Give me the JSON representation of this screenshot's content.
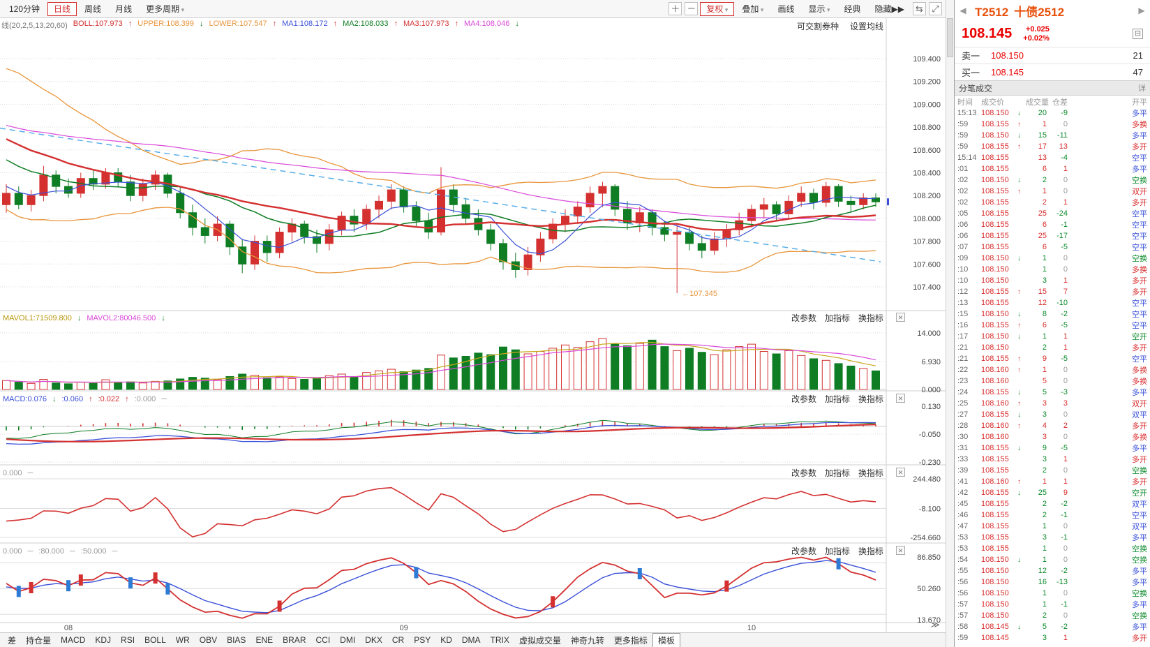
{
  "toolbar": {
    "periods": [
      {
        "label": "120分钟"
      },
      {
        "label": "日线",
        "active": true
      },
      {
        "label": "周线"
      },
      {
        "label": "月线"
      },
      {
        "label": "更多周期",
        "dropdown": true
      }
    ],
    "zoom_in_label": "＋",
    "zoom_out_label": "－",
    "right_buttons": [
      {
        "label": "复权",
        "dropdown": true,
        "accent": true
      },
      {
        "label": "叠加",
        "dropdown": true
      },
      {
        "label": "画线"
      },
      {
        "label": "显示",
        "dropdown": true
      },
      {
        "label": "经典"
      },
      {
        "label": "隐藏▶▶"
      }
    ],
    "icons": [
      {
        "glyph": "⇆",
        "name": "switch-layout-icon"
      },
      {
        "glyph": "⤢",
        "name": "fullscreen-icon"
      }
    ]
  },
  "chart": {
    "indicator_header": [
      {
        "text": "线(20,2,5,13,20,60)",
        "color": "#777"
      },
      {
        "text": "BOLL:107.973",
        "color": "#d43030"
      },
      {
        "text": "↑",
        "color": "#d43030"
      },
      {
        "text": "UPPER:108.399",
        "color": "#e8953a"
      },
      {
        "text": "↓",
        "color": "#0e7d23"
      },
      {
        "text": "LOWER:107.547",
        "color": "#e8953a"
      },
      {
        "text": "↑",
        "color": "#d43030"
      },
      {
        "text": "MA1:108.172",
        "color": "#3a50d9"
      },
      {
        "text": "↑",
        "color": "#d43030"
      },
      {
        "text": "MA2:108.033",
        "color": "#0e7d23"
      },
      {
        "text": "↑",
        "color": "#d43030"
      },
      {
        "text": "MA3:107.973",
        "color": "#d43030"
      },
      {
        "text": "↑",
        "color": "#d43030"
      },
      {
        "text": "MA4:108.046",
        "color": "#d948d9"
      },
      {
        "text": "↓",
        "color": "#0e7d23"
      }
    ],
    "links": {
      "deliverable": "可交割券种",
      "ma_settings": "设置均线"
    },
    "panel_links": {
      "edit": "改参数",
      "add": "加指标",
      "switch": "换指标",
      "close": "✕"
    },
    "vol_header": [
      {
        "text": "MAVOL1:71509.800",
        "color": "#b8960c"
      },
      {
        "text": "↓",
        "color": "#0e7d23"
      },
      {
        "text": "MAVOL2:80046.500",
        "color": "#d948d9"
      },
      {
        "text": "↓",
        "color": "#0e7d23"
      }
    ],
    "macd_header": [
      {
        "text": "MACD:0.076",
        "color": "#3a50d9"
      },
      {
        "text": "↓",
        "color": "#0e7d23"
      },
      {
        "text": ":0.060",
        "color": "#3a50d9"
      },
      {
        "text": "↑",
        "color": "#d43030"
      },
      {
        "text": ":0.022",
        "color": "#d43030"
      },
      {
        "text": "↑",
        "color": "#d43030"
      },
      {
        "text": ":0.000",
        "color": "#999"
      },
      {
        "text": "─",
        "color": "#999"
      }
    ],
    "osc_header": [
      {
        "text": "0.000",
        "color": "#999"
      },
      {
        "text": "─",
        "color": "#999"
      }
    ],
    "kdj_header": [
      {
        "text": "0.000",
        "color": "#999"
      },
      {
        "text": "─",
        "color": "#999"
      },
      {
        "text": ":80.000",
        "color": "#999"
      },
      {
        "text": "─",
        "color": "#999"
      },
      {
        "text": ":50.000",
        "color": "#999"
      },
      {
        "text": "─",
        "color": "#999"
      }
    ],
    "x_labels": [
      {
        "label": "08",
        "i": 5
      },
      {
        "label": "09",
        "i": 32
      },
      {
        "label": "10",
        "i": 60
      }
    ],
    "expand_more": "≫",
    "low_annotation_text": "←107.345"
  },
  "chart_data": {
    "type": "candlestick",
    "symbol": "T2512",
    "name": "十债2512",
    "period": "日线",
    "y_axis_labels": [
      "109.400",
      "109.200",
      "109.000",
      "108.800",
      "108.600",
      "108.400",
      "108.200",
      "108.000",
      "107.800",
      "107.600",
      "107.400"
    ],
    "vol_axis_labels": [
      "14.000",
      "6.930",
      "0.000"
    ],
    "macd_axis_labels": [
      "0.130",
      "-0.050",
      "-0.230"
    ],
    "osc_axis_labels": [
      "244.480",
      "-8.100",
      "-254.660"
    ],
    "kdj_axis_labels": [
      "86.850",
      "50.260",
      "13.670"
    ],
    "kdj_ref_lines": [
      80,
      50,
      20
    ],
    "low_annotation_value": 107.345,
    "trendline": {
      "start_price": 108.79,
      "end_price": 107.62
    },
    "colors": {
      "up": "#d43030",
      "down": "#0e7d23",
      "ma1": "#3a50d9",
      "ma2": "#0e7d23",
      "ma3": "#d43030",
      "ma4": "#d948d9",
      "boll": "#e8953a",
      "trend": "#58aee8",
      "volma1": "#c8a818",
      "volma2": "#d948d9",
      "mark_blue": "#2e7bd6"
    },
    "prehistory": [
      109.35,
      109.3,
      109.28,
      109.32,
      109.22,
      109.15,
      109.18,
      109.08,
      109.0,
      109.05,
      108.92,
      108.85,
      108.88,
      108.78,
      108.7,
      108.72,
      108.62,
      108.55,
      108.58,
      108.45,
      108.38,
      108.32,
      108.28,
      108.2
    ],
    "ohlcv": [
      [
        108.12,
        108.3,
        108.05,
        108.22,
        2.2
      ],
      [
        108.22,
        108.28,
        108.08,
        108.12,
        1.8
      ],
      [
        108.12,
        108.25,
        108.06,
        108.2,
        1.5
      ],
      [
        108.2,
        108.46,
        108.15,
        108.38,
        2.5
      ],
      [
        108.38,
        108.42,
        108.22,
        108.28,
        1.6
      ],
      [
        108.28,
        108.35,
        108.18,
        108.22,
        1.4
      ],
      [
        108.22,
        108.4,
        108.18,
        108.35,
        1.8
      ],
      [
        108.35,
        108.42,
        108.25,
        108.3,
        1.5
      ],
      [
        108.3,
        108.44,
        108.26,
        108.4,
        2.4
      ],
      [
        108.4,
        108.44,
        108.28,
        108.32,
        1.7
      ],
      [
        108.32,
        108.38,
        108.15,
        108.2,
        1.9
      ],
      [
        108.2,
        108.35,
        108.15,
        108.3,
        1.6
      ],
      [
        108.3,
        108.42,
        108.25,
        108.38,
        2.0
      ],
      [
        108.38,
        108.4,
        108.18,
        108.22,
        2.1
      ],
      [
        108.22,
        108.28,
        108.0,
        108.05,
        2.6
      ],
      [
        108.05,
        108.12,
        107.85,
        107.92,
        3.0
      ],
      [
        107.92,
        108.0,
        107.78,
        107.85,
        2.8
      ],
      [
        107.85,
        108.02,
        107.8,
        107.95,
        2.4
      ],
      [
        107.95,
        107.98,
        107.68,
        107.75,
        3.2
      ],
      [
        107.75,
        107.82,
        107.52,
        107.6,
        3.8
      ],
      [
        107.6,
        107.85,
        107.55,
        107.8,
        3.5
      ],
      [
        107.8,
        107.85,
        107.62,
        107.7,
        2.9
      ],
      [
        107.7,
        107.92,
        107.65,
        107.88,
        3.1
      ],
      [
        107.88,
        108.0,
        107.8,
        107.95,
        2.7
      ],
      [
        107.95,
        107.98,
        107.78,
        107.84,
        2.5
      ],
      [
        107.84,
        107.9,
        107.7,
        107.78,
        2.8
      ],
      [
        107.78,
        107.95,
        107.72,
        107.9,
        3.4
      ],
      [
        107.9,
        108.06,
        107.85,
        108.02,
        3.8
      ],
      [
        108.02,
        108.08,
        107.88,
        107.95,
        3.2
      ],
      [
        107.95,
        108.12,
        107.9,
        108.08,
        4.2
      ],
      [
        108.08,
        108.2,
        108.0,
        108.15,
        4.6
      ],
      [
        108.15,
        108.3,
        108.08,
        108.25,
        5.0
      ],
      [
        108.25,
        108.28,
        108.05,
        108.1,
        4.4
      ],
      [
        108.1,
        108.15,
        107.92,
        107.98,
        4.8
      ],
      [
        107.98,
        108.05,
        107.82,
        107.88,
        5.2
      ],
      [
        107.88,
        108.45,
        107.85,
        108.25,
        8.5
      ],
      [
        108.25,
        108.3,
        108.05,
        108.12,
        7.8
      ],
      [
        108.12,
        108.18,
        107.95,
        108.0,
        8.2
      ],
      [
        108.0,
        108.08,
        107.85,
        107.9,
        9.0
      ],
      [
        107.9,
        107.95,
        107.72,
        107.78,
        8.6
      ],
      [
        107.78,
        107.82,
        107.55,
        107.62,
        10.5
      ],
      [
        107.62,
        107.7,
        107.48,
        107.55,
        9.8
      ],
      [
        107.55,
        107.75,
        107.5,
        107.68,
        8.8
      ],
      [
        107.68,
        107.88,
        107.62,
        107.82,
        9.4
      ],
      [
        107.82,
        108.0,
        107.78,
        107.95,
        10.2
      ],
      [
        107.95,
        108.08,
        107.88,
        108.02,
        11.0
      ],
      [
        108.02,
        108.15,
        107.95,
        108.1,
        10.4
      ],
      [
        108.1,
        108.28,
        108.05,
        108.22,
        11.8
      ],
      [
        108.22,
        108.32,
        108.1,
        108.28,
        12.6
      ],
      [
        108.28,
        108.3,
        108.02,
        108.08,
        11.2
      ],
      [
        108.08,
        108.15,
        107.9,
        107.96,
        10.8
      ],
      [
        107.96,
        108.1,
        107.88,
        108.05,
        11.4
      ],
      [
        108.05,
        108.08,
        107.85,
        107.92,
        12.2
      ],
      [
        107.92,
        107.98,
        107.8,
        107.86,
        10.6
      ],
      [
        107.86,
        107.95,
        107.345,
        107.88,
        9.6
      ],
      [
        107.88,
        107.92,
        107.72,
        107.78,
        10.2
      ],
      [
        107.78,
        107.85,
        107.65,
        107.72,
        9.2
      ],
      [
        107.72,
        107.88,
        107.68,
        107.82,
        8.6
      ],
      [
        107.82,
        107.95,
        107.75,
        107.9,
        9.8
      ],
      [
        107.9,
        108.05,
        107.85,
        107.98,
        10.6
      ],
      [
        107.98,
        108.12,
        107.92,
        108.08,
        11.2
      ],
      [
        108.08,
        108.18,
        108.0,
        108.12,
        9.4
      ],
      [
        108.12,
        108.15,
        107.98,
        108.04,
        8.8
      ],
      [
        108.04,
        108.2,
        108.0,
        108.15,
        9.6
      ],
      [
        108.15,
        108.28,
        108.1,
        108.22,
        8.4
      ],
      [
        108.22,
        108.26,
        108.08,
        108.14,
        7.6
      ],
      [
        108.14,
        108.32,
        108.1,
        108.28,
        7.2
      ],
      [
        108.28,
        108.3,
        108.1,
        108.15,
        6.4
      ],
      [
        108.15,
        108.2,
        108.05,
        108.12,
        5.8
      ],
      [
        108.12,
        108.22,
        108.08,
        108.18,
        5.2
      ],
      [
        108.18,
        108.22,
        108.1,
        108.145,
        4.6
      ]
    ]
  },
  "tabs": {
    "items": [
      "差",
      "持仓量",
      "MACD",
      "KDJ",
      "RSI",
      "BOLL",
      "WR",
      "OBV",
      "BIAS",
      "ENE",
      "BRAR",
      "CCI",
      "DMI",
      "DKX",
      "CR",
      "PSY",
      "KD",
      "DMA",
      "TRIX",
      "虚拟成交量",
      "神奇九转",
      "更多指标",
      "模板"
    ],
    "active": "模板"
  },
  "quote": {
    "nav_prev": "◀",
    "nav_next": "▶",
    "code": "T2512",
    "name": "十债2512",
    "price": "108.145",
    "change": "+0.025",
    "change_pct": "+0.02%",
    "minus_icon": "⊟",
    "ask_label": "卖一",
    "ask_price": "108.150",
    "ask_vol": "21",
    "bid_label": "买一",
    "bid_price": "108.145",
    "bid_vol": "47",
    "ticks_title": "分笔成交",
    "detail_label": "详"
  },
  "ticks": {
    "headers": [
      "时间",
      "成交价",
      "成交量",
      "仓差",
      "开平"
    ],
    "rows": [
      [
        "15:13",
        "108.150",
        "d",
        20,
        -9,
        "多平"
      ],
      [
        ":59",
        "108.155",
        "u",
        1,
        0,
        "多换"
      ],
      [
        ":59",
        "108.150",
        "d",
        15,
        -11,
        "多平"
      ],
      [
        ":59",
        "108.155",
        "u",
        17,
        13,
        "多开"
      ],
      [
        "15:14",
        "108.155",
        "n",
        13,
        -4,
        "空平"
      ],
      [
        ":01",
        "108.155",
        "n",
        6,
        1,
        "多平"
      ],
      [
        ":02",
        "108.150",
        "d",
        2,
        0,
        "空换"
      ],
      [
        ":02",
        "108.155",
        "u",
        1,
        0,
        "双开"
      ],
      [
        ":02",
        "108.155",
        "n",
        2,
        1,
        "多开"
      ],
      [
        ":05",
        "108.155",
        "n",
        25,
        -24,
        "空平"
      ],
      [
        ":06",
        "108.155",
        "n",
        6,
        -1,
        "空平"
      ],
      [
        ":06",
        "108.155",
        "n",
        25,
        -17,
        "空平"
      ],
      [
        ":07",
        "108.155",
        "n",
        6,
        -5,
        "空平"
      ],
      [
        ":09",
        "108.150",
        "d",
        1,
        0,
        "空换"
      ],
      [
        ":10",
        "108.150",
        "n",
        1,
        0,
        "多换"
      ],
      [
        ":10",
        "108.150",
        "n",
        3,
        1,
        "多开"
      ],
      [
        ":12",
        "108.155",
        "u",
        15,
        7,
        "多开"
      ],
      [
        ":13",
        "108.155",
        "n",
        12,
        -10,
        "空平"
      ],
      [
        ":15",
        "108.150",
        "d",
        8,
        -2,
        "空平"
      ],
      [
        ":16",
        "108.155",
        "u",
        6,
        -5,
        "空平"
      ],
      [
        ":17",
        "108.150",
        "d",
        1,
        1,
        "空开"
      ],
      [
        ":21",
        "108.150",
        "n",
        2,
        1,
        "多开"
      ],
      [
        ":21",
        "108.155",
        "u",
        9,
        -5,
        "空平"
      ],
      [
        ":22",
        "108.160",
        "u",
        1,
        0,
        "多换"
      ],
      [
        ":23",
        "108.160",
        "n",
        5,
        0,
        "多换"
      ],
      [
        ":24",
        "108.155",
        "d",
        5,
        -3,
        "多平"
      ],
      [
        ":25",
        "108.160",
        "u",
        3,
        3,
        "双开"
      ],
      [
        ":27",
        "108.155",
        "d",
        3,
        0,
        "双平"
      ],
      [
        ":28",
        "108.160",
        "u",
        4,
        2,
        "多开"
      ],
      [
        ":30",
        "108.160",
        "n",
        3,
        0,
        "多换"
      ],
      [
        ":31",
        "108.155",
        "d",
        9,
        -5,
        "多平"
      ],
      [
        ":33",
        "108.155",
        "n",
        3,
        1,
        "多开"
      ],
      [
        ":39",
        "108.155",
        "n",
        2,
        0,
        "空换"
      ],
      [
        ":41",
        "108.160",
        "u",
        1,
        1,
        "多开"
      ],
      [
        ":42",
        "108.155",
        "d",
        25,
        9,
        "空开"
      ],
      [
        ":45",
        "108.155",
        "n",
        2,
        -2,
        "双平"
      ],
      [
        ":46",
        "108.155",
        "n",
        2,
        -1,
        "空平"
      ],
      [
        ":47",
        "108.155",
        "n",
        1,
        0,
        "双平"
      ],
      [
        ":53",
        "108.155",
        "n",
        3,
        -1,
        "多平"
      ],
      [
        ":53",
        "108.155",
        "n",
        1,
        0,
        "空换"
      ],
      [
        ":54",
        "108.150",
        "d",
        1,
        0,
        "空换"
      ],
      [
        ":55",
        "108.150",
        "n",
        12,
        -2,
        "多平"
      ],
      [
        ":56",
        "108.150",
        "n",
        16,
        -13,
        "多平"
      ],
      [
        ":56",
        "108.150",
        "n",
        1,
        0,
        "空换"
      ],
      [
        ":57",
        "108.150",
        "n",
        1,
        -1,
        "多平"
      ],
      [
        ":57",
        "108.150",
        "n",
        2,
        0,
        "空换"
      ],
      [
        ":58",
        "108.145",
        "d",
        5,
        -2,
        "多平"
      ],
      [
        ":59",
        "108.145",
        "n",
        3,
        1,
        "多开"
      ]
    ]
  }
}
